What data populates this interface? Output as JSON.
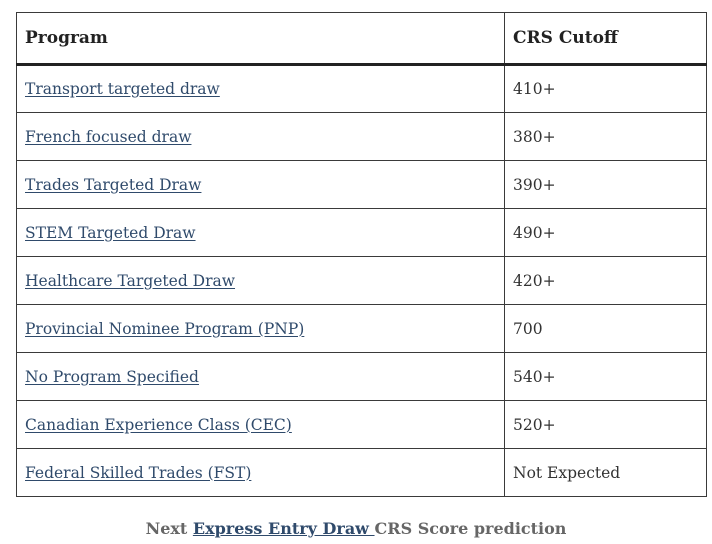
{
  "table": {
    "headers": {
      "program": "Program",
      "cutoff": "CRS Cutoff"
    },
    "rows": [
      {
        "program": "Transport targeted draw",
        "cutoff": "410+"
      },
      {
        "program": "French focused draw",
        "cutoff": "380+"
      },
      {
        "program": "Trades Targeted Draw",
        "cutoff": "390+"
      },
      {
        "program": "STEM Targeted Draw",
        "cutoff": "490+"
      },
      {
        "program": "Healthcare Targeted Draw",
        "cutoff": "420+"
      },
      {
        "program": "Provincial Nominee Program (PNP)",
        "cutoff": "700"
      },
      {
        "program": "No Program Specified",
        "cutoff": "540+"
      },
      {
        "program": "Canadian Experience Class (CEC)",
        "cutoff": "520+"
      },
      {
        "program": "Federal Skilled Trades (FST)",
        "cutoff": "Not Expected"
      }
    ]
  },
  "caption": {
    "prefix": "Next ",
    "link": "Express Entry Draw ",
    "suffix": "CRS Score prediction"
  },
  "colors": {
    "link": "#2f4a6b",
    "border": "#3a3a3a",
    "caption": "#666666"
  }
}
